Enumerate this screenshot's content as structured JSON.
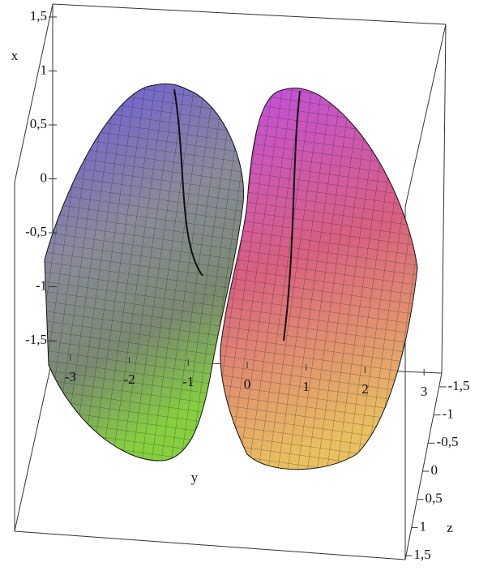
{
  "chart_data": {
    "type": "surface3d",
    "xlabel": "x",
    "ylabel": "y",
    "zlabel": "z",
    "xlim": [
      -1.65,
      1.62
    ],
    "xticks": [
      {
        "value": 1.5,
        "label": "1,5"
      },
      1,
      {
        "value": 0.5,
        "label": "0,5"
      },
      0,
      {
        "value": -0.5,
        "label": "-0,5"
      },
      -1,
      {
        "value": -1.5,
        "label": "-1,5"
      }
    ],
    "ylim": [
      -3.3,
      3.3
    ],
    "yticks": [
      -3,
      -2,
      -1,
      0,
      1,
      2,
      3
    ],
    "zlim": [
      -1.6,
      1.6
    ],
    "zticks": [
      {
        "value": -1.5,
        "label": "-1,5"
      },
      -1,
      {
        "value": -0.5,
        "label": "-0,5"
      },
      0,
      {
        "value": 0.5,
        "label": "0,5"
      },
      1,
      {
        "value": 1.5,
        "label": "1,5"
      }
    ]
  }
}
